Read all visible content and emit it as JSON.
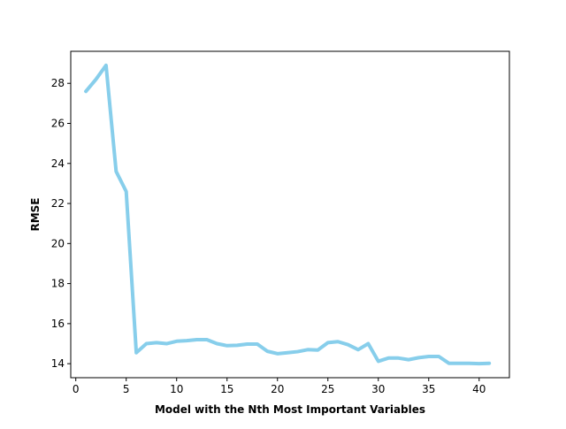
{
  "chart_data": {
    "type": "line",
    "title": "",
    "xlabel": "Model with the Nth Most Important Variables",
    "ylabel": "RMSE",
    "xlim": [
      -0.5,
      43.0
    ],
    "ylim": [
      13.3,
      29.6
    ],
    "xticks": [
      0,
      5,
      10,
      15,
      20,
      25,
      30,
      35,
      40
    ],
    "yticks": [
      14,
      16,
      18,
      20,
      22,
      24,
      26,
      28
    ],
    "grid": false,
    "legend": "none",
    "series": [
      {
        "color": "#87CEEB",
        "x": [
          1,
          2,
          3,
          4,
          5,
          6,
          7,
          8,
          9,
          10,
          11,
          12,
          13,
          14,
          15,
          16,
          17,
          18,
          19,
          20,
          21,
          22,
          23,
          24,
          25,
          26,
          27,
          28,
          29,
          30,
          31,
          32,
          33,
          34,
          35,
          36,
          37,
          38,
          39,
          40,
          41
        ],
        "y": [
          27.6,
          28.2,
          28.9,
          23.6,
          22.6,
          14.55,
          15.0,
          15.05,
          15.0,
          15.12,
          15.15,
          15.2,
          15.2,
          15.0,
          14.9,
          14.92,
          14.98,
          14.98,
          14.62,
          14.5,
          14.55,
          14.6,
          14.7,
          14.68,
          15.05,
          15.1,
          14.95,
          14.7,
          15.0,
          14.12,
          14.28,
          14.28,
          14.2,
          14.3,
          14.36,
          14.36,
          14.02,
          14.02,
          14.02,
          14.0,
          14.02
        ]
      }
    ]
  }
}
